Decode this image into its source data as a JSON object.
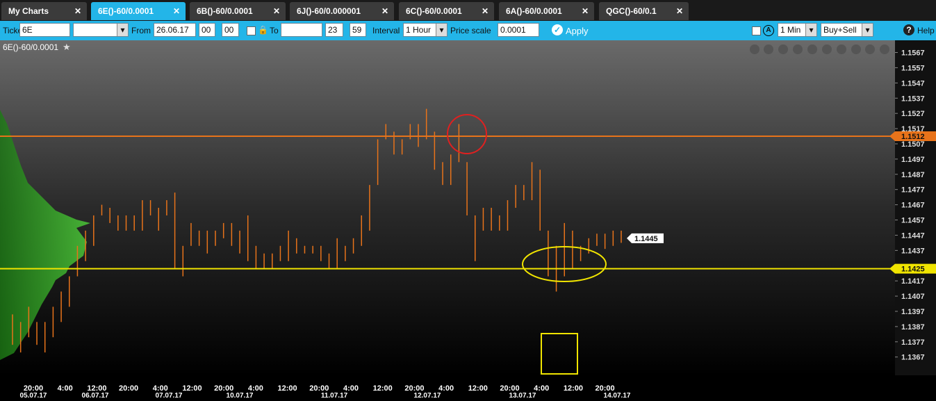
{
  "tabs": [
    "My Charts",
    "6E()-60/0.0001",
    "6B()-60/0.0001",
    "6J()-60/0.000001",
    "6C()-60/0.0001",
    "6A()-60/0.0001",
    "QGC()-60/0.1"
  ],
  "toolbar": {
    "ticker_label": "Ticker",
    "ticker": "6E",
    "from_label": "From",
    "from_date": "26.06.17",
    "from_hour": "00",
    "from_minute": "00",
    "to_label": "To",
    "to_hour": "23",
    "to_minute": "59",
    "interval_label": "Interval",
    "interval": "1 Hour",
    "price_scale_label": "Price scale",
    "price_scale": "0.0001",
    "apply": "Apply",
    "timeframe": "1 Min",
    "side": "Buy+Sell",
    "help": "Help"
  },
  "chart_data": {
    "type": "range_bar",
    "title": "6E()-60/0.0001",
    "lows": [
      1.1375,
      1.137,
      1.138,
      1.1375,
      1.137,
      1.138,
      1.139,
      1.14,
      1.142,
      1.143,
      1.144,
      1.146,
      1.1455,
      1.145,
      1.145,
      1.145,
      1.145,
      1.146,
      1.145,
      1.146,
      1.1425,
      1.142,
      1.144,
      1.144,
      1.1435,
      1.144,
      1.1445,
      1.144,
      1.1435,
      1.143,
      1.1425,
      1.1425,
      1.1425,
      1.143,
      1.143,
      1.1435,
      1.1435,
      1.1435,
      1.143,
      1.1425,
      1.1425,
      1.143,
      1.1435,
      1.144,
      1.145,
      1.148,
      1.151,
      1.15,
      1.15,
      1.151,
      1.1505,
      1.151,
      1.149,
      1.148,
      1.148,
      1.1495,
      1.146,
      1.143,
      1.145,
      1.145,
      1.145,
      1.145,
      1.1465,
      1.147,
      1.147,
      1.145,
      1.142,
      1.141,
      1.142,
      1.1425,
      1.143,
      1.1435,
      1.144,
      1.1438,
      1.144,
      1.1442
    ],
    "highs": [
      1.1395,
      1.139,
      1.14,
      1.139,
      1.139,
      1.14,
      1.141,
      1.142,
      1.144,
      1.145,
      1.146,
      1.1467,
      1.1465,
      1.146,
      1.146,
      1.146,
      1.147,
      1.147,
      1.1465,
      1.147,
      1.1475,
      1.144,
      1.1455,
      1.145,
      1.145,
      1.145,
      1.1455,
      1.1455,
      1.145,
      1.146,
      1.144,
      1.1435,
      1.1435,
      1.144,
      1.145,
      1.1445,
      1.144,
      1.144,
      1.144,
      1.1435,
      1.1445,
      1.144,
      1.1445,
      1.146,
      1.148,
      1.151,
      1.152,
      1.1515,
      1.151,
      1.152,
      1.152,
      1.153,
      1.1515,
      1.1495,
      1.15,
      1.152,
      1.1495,
      1.146,
      1.1465,
      1.1465,
      1.146,
      1.147,
      1.148,
      1.148,
      1.1495,
      1.149,
      1.145,
      1.144,
      1.1455,
      1.145,
      1.144,
      1.1445,
      1.1448,
      1.1448,
      1.145,
      1.145
    ],
    "color": "#e8731a",
    "ylim": [
      1.1355,
      1.1575
    ],
    "yticks": [
      1.1567,
      1.1557,
      1.1547,
      1.1537,
      1.1527,
      1.1517,
      1.1507,
      1.1497,
      1.1487,
      1.1477,
      1.1467,
      1.1457,
      1.1447,
      1.1437,
      1.1417,
      1.1407,
      1.1397,
      1.1387,
      1.1377,
      1.1367
    ],
    "x_time_labels": [
      "20:00",
      "4:00",
      "12:00",
      "20:00",
      "4:00",
      "12:00",
      "20:00",
      "4:00",
      "12:00",
      "20:00",
      "4:00",
      "12:00",
      "20:00",
      "4:00",
      "12:00",
      "20:00",
      "4:00",
      "12:00",
      "20:00"
    ],
    "x_date_labels": [
      "05.07.17",
      "06.07.17",
      "07.07.17",
      "10.07.17",
      "11.07.17",
      "12.07.17",
      "13.07.17",
      "14.07.17"
    ],
    "price_lines": [
      {
        "value": 1.1512,
        "color": "#e8731a"
      },
      {
        "value": 1.1425,
        "color": "#f0e400"
      }
    ],
    "last_price": 1.1445
  }
}
